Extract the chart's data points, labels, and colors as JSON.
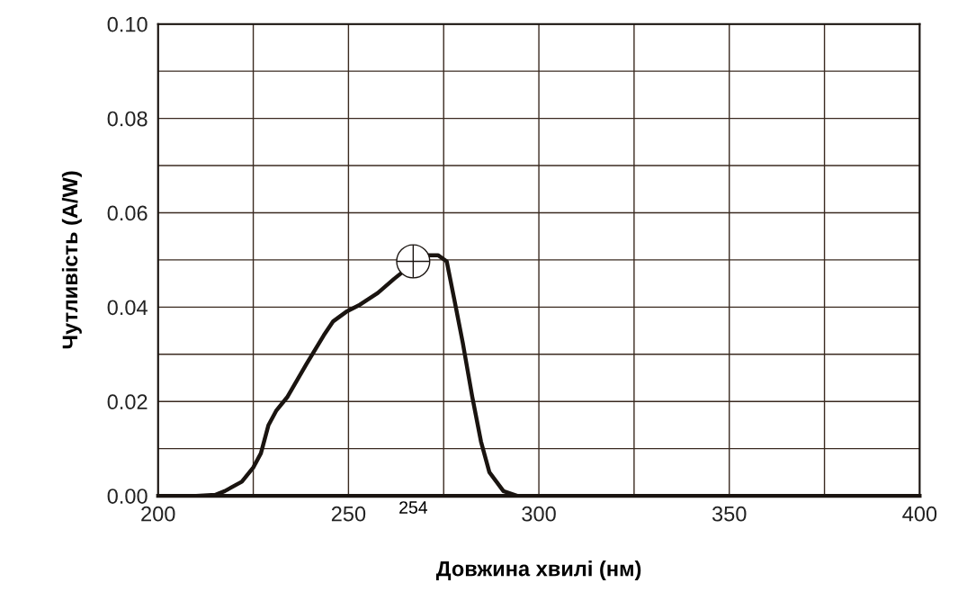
{
  "chart_data": {
    "type": "line",
    "xlabel": "Довжина хвилі (нм)",
    "ylabel": "Чутливість (A/W)",
    "series": [
      {
        "color": "#1a1410",
        "x": [
          200,
          210,
          215,
          217.5,
          222,
          225,
          227,
          229,
          231,
          234,
          239,
          243.5,
          246,
          249.4,
          253,
          257.7,
          262,
          266.6,
          268,
          270.7,
          273.5,
          275.8,
          277.7,
          280,
          282.5,
          284.8,
          287,
          290.7,
          294.3,
          300,
          350,
          400
        ],
        "values": [
          0,
          0,
          0.0002,
          0.001,
          0.003,
          0.006,
          0.009,
          0.015,
          0.018,
          0.021,
          0.028,
          0.034,
          0.037,
          0.039,
          0.0405,
          0.043,
          0.046,
          0.049,
          0.051,
          0.051,
          0.051,
          0.0497,
          0.042,
          0.0325,
          0.021,
          0.0115,
          0.005,
          0.001,
          0,
          0,
          0,
          0
        ]
      },
      {
        "type": "scatter",
        "color": "#1a1410",
        "marker": "circle",
        "x": [
          267
        ],
        "values": [
          0.0497
        ]
      }
    ],
    "annotations": [
      "254"
    ],
    "xlim": [
      200,
      400
    ],
    "ylim": [
      0,
      0.1
    ],
    "xticks": [
      200,
      {
        "value": 225,
        "label": null
      },
      250,
      {
        "value": 275,
        "label": null
      },
      300,
      {
        "value": 325,
        "label": null
      },
      350,
      {
        "value": 375,
        "label": null
      },
      400
    ],
    "yticks": [
      {
        "value": 0,
        "label": "0.00"
      },
      {
        "value": 0.01,
        "label": null
      },
      {
        "value": 0.02,
        "label": "0.02"
      },
      {
        "value": 0.03,
        "label": null
      },
      {
        "value": 0.04,
        "label": "0.04"
      },
      {
        "value": 0.05,
        "label": null
      },
      {
        "value": 0.06,
        "label": "0.06"
      },
      {
        "value": 0.07,
        "label": null
      },
      {
        "value": 0.08,
        "label": "0.08"
      },
      {
        "value": 0.09,
        "label": null
      },
      {
        "value": 0.1,
        "label": "0.10"
      }
    ],
    "grid": true
  }
}
